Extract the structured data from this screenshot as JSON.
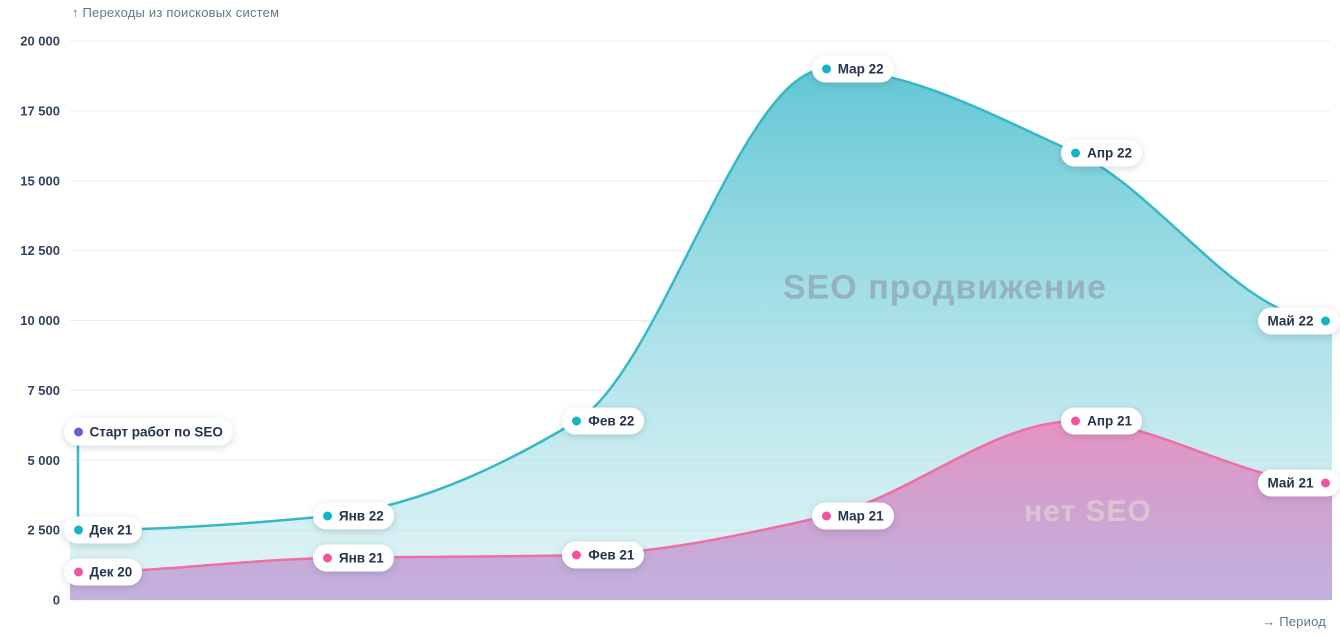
{
  "chart_data": {
    "type": "area",
    "title": "",
    "ylabel": "↑ Переходы из поисковых систем",
    "xlabel": "→ Период",
    "ylim": [
      0,
      20000
    ],
    "ytick_values": [
      0,
      2500,
      5000,
      7500,
      10000,
      12500,
      15000,
      17500,
      20000
    ],
    "ytick_labels": [
      "0",
      "2 500",
      "5 000",
      "7 500",
      "10 000",
      "12 500",
      "15 000",
      "17 500",
      "20 000"
    ],
    "grid": true,
    "legend_position": "none",
    "series": [
      {
        "name": "SEO продвижение",
        "line_color": "#35b9c6",
        "dot_color": "#14b4c8",
        "fill_top": "#54c2d0",
        "fill_bottom": "#c3e9ee",
        "watermark_color": "#95b2bf",
        "points": [
          {
            "label": "Дек 21",
            "value": 2500
          },
          {
            "label": "Янв 22",
            "value": 3000
          },
          {
            "label": "Фев 22",
            "value": 6400
          },
          {
            "label": "Мар 22",
            "value": 19000
          },
          {
            "label": "Апр 22",
            "value": 16000
          },
          {
            "label": "Май 22",
            "value": 10000
          }
        ]
      },
      {
        "name": "нет SEO",
        "line_color": "#f06ea7",
        "dot_color": "#f2549c",
        "fill_top": "#f07fb5",
        "fill_bottom": "#ad86d0",
        "watermark_color": "#dcc3d2",
        "points": [
          {
            "label": "Дек 20",
            "value": 1000
          },
          {
            "label": "Янв 21",
            "value": 1500
          },
          {
            "label": "Фев 21",
            "value": 1600
          },
          {
            "label": "Мар 21",
            "value": 3000
          },
          {
            "label": "Апр 21",
            "value": 6400
          },
          {
            "label": "Май 21",
            "value": 4200
          }
        ]
      }
    ],
    "annotation": {
      "label": "Старт работ по SEO",
      "value": 6000,
      "point_index": 0,
      "dot_color": "#6e5bd8"
    }
  }
}
